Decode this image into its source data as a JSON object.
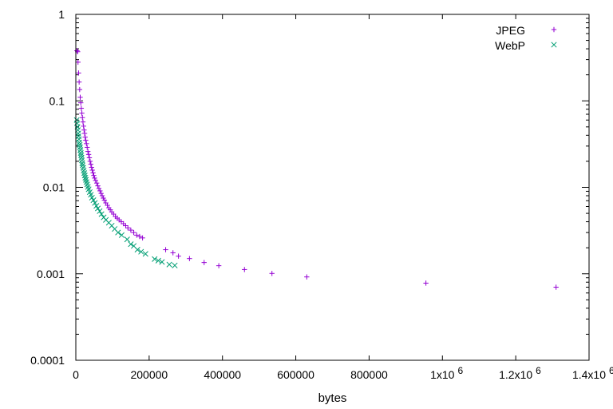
{
  "chart_data": {
    "type": "scatter",
    "title": "",
    "xlabel": "bytes",
    "ylabel": "",
    "xlim": [
      0,
      1400000
    ],
    "ylim": [
      0.0001,
      1
    ],
    "yscale": "log",
    "grid": false,
    "legend_position": "top-right",
    "x_ticks": [
      {
        "value": 0,
        "label": "0"
      },
      {
        "value": 200000,
        "label": "200000"
      },
      {
        "value": 400000,
        "label": "400000"
      },
      {
        "value": 600000,
        "label": "600000"
      },
      {
        "value": 800000,
        "label": "800000"
      },
      {
        "value": 1000000,
        "label": "1x10",
        "exp": "6"
      },
      {
        "value": 1200000,
        "label": "1.2x10",
        "exp": "6"
      },
      {
        "value": 1400000,
        "label": "1.4x10",
        "exp": "6"
      }
    ],
    "y_ticks": [
      {
        "value": 1,
        "label": "1"
      },
      {
        "value": 0.1,
        "label": "0.1"
      },
      {
        "value": 0.01,
        "label": "0.01"
      },
      {
        "value": 0.001,
        "label": "0.001"
      },
      {
        "value": 0.0001,
        "label": "0.0001"
      }
    ],
    "series": [
      {
        "name": "JPEG",
        "marker": "plus",
        "color": "#9400d3",
        "points": [
          [
            3000,
            0.38
          ],
          [
            5000,
            0.37
          ],
          [
            6000,
            0.28
          ],
          [
            7500,
            0.21
          ],
          [
            9000,
            0.165
          ],
          [
            10500,
            0.135
          ],
          [
            12000,
            0.11
          ],
          [
            13500,
            0.095
          ],
          [
            15000,
            0.082
          ],
          [
            16500,
            0.072
          ],
          [
            18000,
            0.064
          ],
          [
            19500,
            0.057
          ],
          [
            21000,
            0.051
          ],
          [
            22500,
            0.046
          ],
          [
            24000,
            0.042
          ],
          [
            25500,
            0.038
          ],
          [
            27000,
            0.035
          ],
          [
            29000,
            0.032
          ],
          [
            31000,
            0.029
          ],
          [
            33000,
            0.026
          ],
          [
            35000,
            0.024
          ],
          [
            37000,
            0.022
          ],
          [
            39000,
            0.02
          ],
          [
            41000,
            0.0185
          ],
          [
            43000,
            0.017
          ],
          [
            45000,
            0.0158
          ],
          [
            47000,
            0.0147
          ],
          [
            49000,
            0.0137
          ],
          [
            51000,
            0.0128
          ],
          [
            54000,
            0.012
          ],
          [
            57000,
            0.0112
          ],
          [
            60000,
            0.0104
          ],
          [
            63000,
            0.0097
          ],
          [
            66000,
            0.0091
          ],
          [
            69000,
            0.0085
          ],
          [
            72000,
            0.008
          ],
          [
            75000,
            0.0075
          ],
          [
            78000,
            0.0071
          ],
          [
            82000,
            0.0066
          ],
          [
            86000,
            0.0062
          ],
          [
            90000,
            0.0058
          ],
          [
            94000,
            0.0055
          ],
          [
            98000,
            0.0052
          ],
          [
            103000,
            0.0049
          ],
          [
            108000,
            0.0046
          ],
          [
            113000,
            0.0044
          ],
          [
            118000,
            0.0042
          ],
          [
            124000,
            0.004
          ],
          [
            130000,
            0.0038
          ],
          [
            136000,
            0.0036
          ],
          [
            142000,
            0.0034
          ],
          [
            150000,
            0.0032
          ],
          [
            158000,
            0.003
          ],
          [
            166000,
            0.0028
          ],
          [
            174000,
            0.0027
          ],
          [
            182000,
            0.0026
          ],
          [
            245000,
            0.0019
          ],
          [
            265000,
            0.00175
          ],
          [
            280000,
            0.0016
          ],
          [
            310000,
            0.0015
          ],
          [
            350000,
            0.00135
          ],
          [
            390000,
            0.00124
          ],
          [
            460000,
            0.00112
          ],
          [
            535000,
            0.00101
          ],
          [
            630000,
            0.00092
          ],
          [
            955000,
            0.00078
          ],
          [
            1310000,
            0.0007
          ]
        ]
      },
      {
        "name": "WebP",
        "marker": "x",
        "color": "#009e73",
        "points": [
          [
            2500,
            0.06
          ],
          [
            3500,
            0.055
          ],
          [
            4500,
            0.05
          ],
          [
            5500,
            0.046
          ],
          [
            6500,
            0.042
          ],
          [
            7500,
            0.039
          ],
          [
            8500,
            0.036
          ],
          [
            9500,
            0.033
          ],
          [
            10500,
            0.031
          ],
          [
            11500,
            0.029
          ],
          [
            12500,
            0.027
          ],
          [
            13500,
            0.025
          ],
          [
            14500,
            0.0235
          ],
          [
            15500,
            0.022
          ],
          [
            16500,
            0.0205
          ],
          [
            17500,
            0.019
          ],
          [
            18500,
            0.018
          ],
          [
            20000,
            0.0168
          ],
          [
            21500,
            0.0156
          ],
          [
            23000,
            0.0146
          ],
          [
            24500,
            0.0137
          ],
          [
            26000,
            0.0129
          ],
          [
            27500,
            0.0122
          ],
          [
            29000,
            0.0115
          ],
          [
            31000,
            0.0108
          ],
          [
            33000,
            0.0101
          ],
          [
            35000,
            0.0095
          ],
          [
            38000,
            0.0088
          ],
          [
            41000,
            0.0082
          ],
          [
            44000,
            0.0076
          ],
          [
            48000,
            0.0071
          ],
          [
            52000,
            0.0066
          ],
          [
            56000,
            0.0061
          ],
          [
            60000,
            0.0057
          ],
          [
            65000,
            0.0053
          ],
          [
            70000,
            0.0049
          ],
          [
            76000,
            0.0045
          ],
          [
            82000,
            0.0042
          ],
          [
            90000,
            0.0039
          ],
          [
            98000,
            0.0036
          ],
          [
            106000,
            0.0033
          ],
          [
            115000,
            0.003
          ],
          [
            125000,
            0.0028
          ],
          [
            140000,
            0.0025
          ],
          [
            150000,
            0.0022
          ],
          [
            158000,
            0.0021
          ],
          [
            168000,
            0.0019
          ],
          [
            178000,
            0.0018
          ],
          [
            190000,
            0.0017
          ],
          [
            215000,
            0.00148
          ],
          [
            225000,
            0.00142
          ],
          [
            235000,
            0.00137
          ],
          [
            255000,
            0.00128
          ],
          [
            270000,
            0.00125
          ]
        ]
      }
    ]
  }
}
